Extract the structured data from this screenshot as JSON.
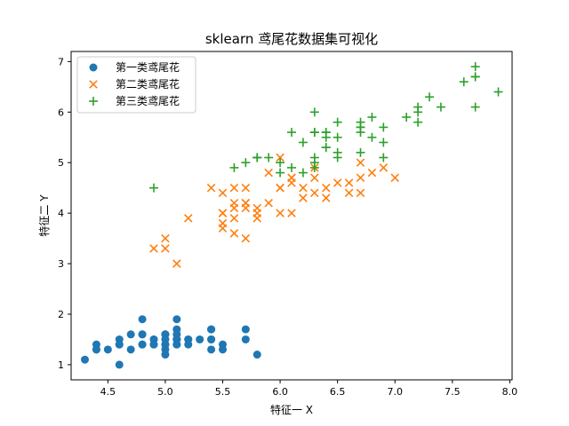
{
  "chart_data": {
    "type": "scatter",
    "title": "sklearn 鸢尾花数据集可视化",
    "xlabel": "特征一 X",
    "ylabel": "特征二 Y",
    "xlim": [
      4.18,
      8.02
    ],
    "ylim": [
      0.7,
      7.2
    ],
    "xticks": [
      "4.5",
      "5.0",
      "5.5",
      "6.0",
      "6.5",
      "7.0",
      "7.5",
      "8.0"
    ],
    "yticks": [
      "1",
      "2",
      "3",
      "4",
      "5",
      "6",
      "7"
    ],
    "grid": false,
    "legend_position": "top-left",
    "series": [
      {
        "name": "第一类鸢尾花",
        "marker": "circle",
        "color": "#1f77b4",
        "points": [
          [
            5.1,
            1.4
          ],
          [
            4.9,
            1.4
          ],
          [
            4.7,
            1.3
          ],
          [
            4.6,
            1.5
          ],
          [
            5.0,
            1.4
          ],
          [
            5.4,
            1.7
          ],
          [
            4.6,
            1.4
          ],
          [
            5.0,
            1.5
          ],
          [
            4.4,
            1.4
          ],
          [
            4.9,
            1.5
          ],
          [
            5.4,
            1.5
          ],
          [
            4.8,
            1.6
          ],
          [
            4.8,
            1.4
          ],
          [
            4.3,
            1.1
          ],
          [
            5.8,
            1.2
          ],
          [
            5.7,
            1.5
          ],
          [
            5.4,
            1.3
          ],
          [
            5.1,
            1.4
          ],
          [
            5.7,
            1.7
          ],
          [
            5.1,
            1.5
          ],
          [
            5.4,
            1.7
          ],
          [
            5.1,
            1.5
          ],
          [
            4.6,
            1.0
          ],
          [
            5.1,
            1.7
          ],
          [
            4.8,
            1.9
          ],
          [
            5.0,
            1.6
          ],
          [
            5.0,
            1.6
          ],
          [
            5.2,
            1.5
          ],
          [
            5.2,
            1.4
          ],
          [
            4.7,
            1.6
          ],
          [
            4.8,
            1.6
          ],
          [
            5.4,
            1.5
          ],
          [
            5.2,
            1.5
          ],
          [
            5.5,
            1.4
          ],
          [
            4.9,
            1.5
          ],
          [
            5.0,
            1.2
          ],
          [
            5.5,
            1.3
          ],
          [
            4.9,
            1.4
          ],
          [
            4.4,
            1.3
          ],
          [
            5.1,
            1.5
          ],
          [
            5.0,
            1.3
          ],
          [
            4.5,
            1.3
          ],
          [
            4.4,
            1.3
          ],
          [
            5.0,
            1.6
          ],
          [
            5.1,
            1.9
          ],
          [
            4.8,
            1.4
          ],
          [
            5.1,
            1.6
          ],
          [
            4.6,
            1.4
          ],
          [
            5.3,
            1.5
          ],
          [
            5.0,
            1.4
          ]
        ]
      },
      {
        "name": "第二类鸢尾花",
        "marker": "x",
        "color": "#ff7f0e",
        "points": [
          [
            7.0,
            4.7
          ],
          [
            6.4,
            4.5
          ],
          [
            6.9,
            4.9
          ],
          [
            5.5,
            4.0
          ],
          [
            6.5,
            4.6
          ],
          [
            5.7,
            4.5
          ],
          [
            6.3,
            4.7
          ],
          [
            4.9,
            3.3
          ],
          [
            6.6,
            4.6
          ],
          [
            5.2,
            3.9
          ],
          [
            5.0,
            3.5
          ],
          [
            5.9,
            4.2
          ],
          [
            6.0,
            4.0
          ],
          [
            6.1,
            4.7
          ],
          [
            5.6,
            3.6
          ],
          [
            6.7,
            4.4
          ],
          [
            5.6,
            4.5
          ],
          [
            5.8,
            4.1
          ],
          [
            6.2,
            4.5
          ],
          [
            5.6,
            3.9
          ],
          [
            5.9,
            4.8
          ],
          [
            6.1,
            4.0
          ],
          [
            6.3,
            4.9
          ],
          [
            6.1,
            4.7
          ],
          [
            6.4,
            4.3
          ],
          [
            6.6,
            4.4
          ],
          [
            6.8,
            4.8
          ],
          [
            6.7,
            5.0
          ],
          [
            6.0,
            4.5
          ],
          [
            5.7,
            3.5
          ],
          [
            5.5,
            3.8
          ],
          [
            5.5,
            3.7
          ],
          [
            5.8,
            3.9
          ],
          [
            6.0,
            5.1
          ],
          [
            5.4,
            4.5
          ],
          [
            6.0,
            4.5
          ],
          [
            6.7,
            4.7
          ],
          [
            6.3,
            4.4
          ],
          [
            5.6,
            4.1
          ],
          [
            5.5,
            4.0
          ],
          [
            5.5,
            4.4
          ],
          [
            6.1,
            4.6
          ],
          [
            5.8,
            4.0
          ],
          [
            5.0,
            3.3
          ],
          [
            5.6,
            4.2
          ],
          [
            5.7,
            4.2
          ],
          [
            5.7,
            4.2
          ],
          [
            6.2,
            4.3
          ],
          [
            5.1,
            3.0
          ],
          [
            5.7,
            4.1
          ]
        ]
      },
      {
        "name": "第三类鸢尾花",
        "marker": "plus",
        "color": "#2ca02c",
        "points": [
          [
            6.3,
            6.0
          ],
          [
            5.8,
            5.1
          ],
          [
            7.1,
            5.9
          ],
          [
            6.3,
            5.6
          ],
          [
            6.5,
            5.8
          ],
          [
            7.6,
            6.6
          ],
          [
            4.9,
            4.5
          ],
          [
            7.3,
            6.3
          ],
          [
            6.7,
            5.8
          ],
          [
            7.2,
            6.1
          ],
          [
            6.5,
            5.1
          ],
          [
            6.4,
            5.3
          ],
          [
            6.8,
            5.5
          ],
          [
            5.7,
            5.0
          ],
          [
            5.8,
            5.1
          ],
          [
            6.4,
            5.3
          ],
          [
            6.5,
            5.5
          ],
          [
            7.7,
            6.7
          ],
          [
            7.7,
            6.9
          ],
          [
            6.0,
            5.0
          ],
          [
            6.9,
            5.7
          ],
          [
            5.6,
            4.9
          ],
          [
            7.7,
            6.7
          ],
          [
            6.3,
            4.9
          ],
          [
            6.7,
            5.7
          ],
          [
            7.2,
            6.0
          ],
          [
            6.2,
            4.8
          ],
          [
            6.1,
            4.9
          ],
          [
            6.4,
            5.6
          ],
          [
            7.2,
            5.8
          ],
          [
            7.4,
            6.1
          ],
          [
            7.9,
            6.4
          ],
          [
            6.4,
            5.6
          ],
          [
            6.3,
            5.1
          ],
          [
            6.1,
            5.6
          ],
          [
            7.7,
            6.1
          ],
          [
            6.3,
            5.6
          ],
          [
            6.4,
            5.5
          ],
          [
            6.0,
            4.8
          ],
          [
            6.9,
            5.4
          ],
          [
            6.7,
            5.6
          ],
          [
            6.9,
            5.1
          ],
          [
            5.8,
            5.1
          ],
          [
            6.8,
            5.9
          ],
          [
            6.7,
            5.7
          ],
          [
            6.7,
            5.2
          ],
          [
            6.3,
            5.0
          ],
          [
            6.5,
            5.2
          ],
          [
            6.2,
            5.4
          ],
          [
            5.9,
            5.1
          ]
        ]
      }
    ]
  }
}
